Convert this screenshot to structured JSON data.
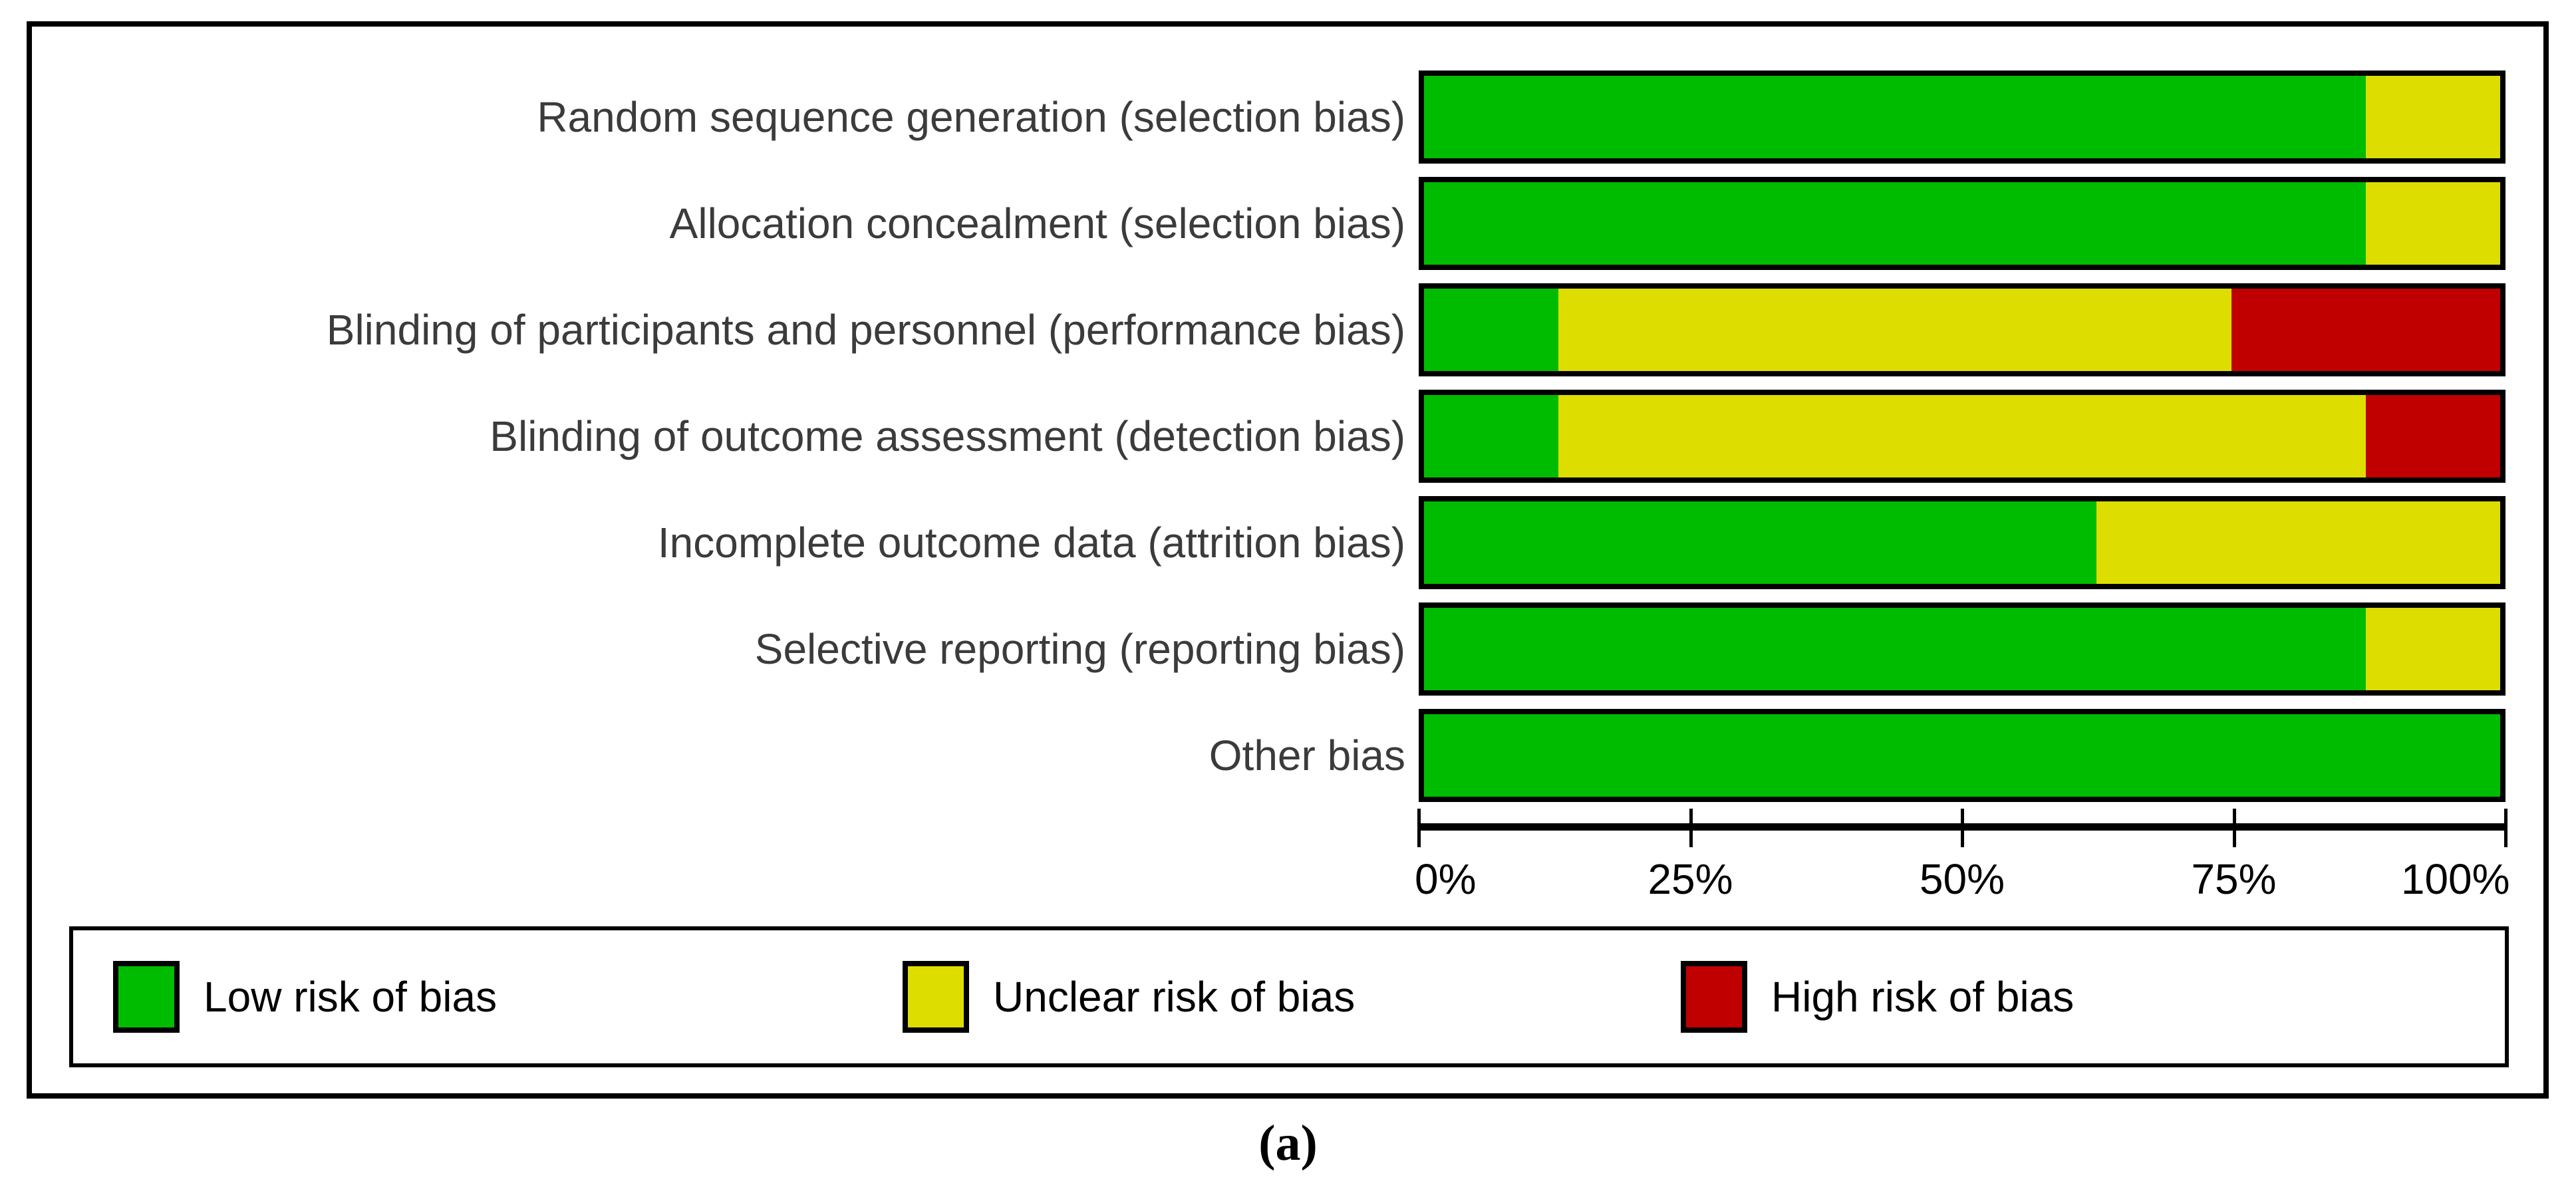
{
  "figure": {
    "caption": "(a)"
  },
  "colors": {
    "low_risk": "#00bc00",
    "unclear_risk": "#dedd00",
    "high_risk": "#c00000",
    "label_text": "#3b3b3b",
    "border": "#000000"
  },
  "legend": {
    "items": [
      {
        "key": "low",
        "label": "Low risk of bias",
        "color": "#00bc00"
      },
      {
        "key": "unclear",
        "label": "Unclear risk of bias",
        "color": "#dedd00"
      },
      {
        "key": "high",
        "label": "High risk of bias",
        "color": "#c00000"
      }
    ]
  },
  "chart_data": {
    "type": "bar",
    "orientation": "horizontal",
    "stacked": true,
    "unit": "percent",
    "title": "",
    "xlabel": "",
    "ylabel": "",
    "xlim": [
      0,
      100
    ],
    "x_ticks": [
      "0%",
      "25%",
      "50%",
      "75%",
      "100%"
    ],
    "grid": false,
    "legend_position": "bottom",
    "categories": [
      "Random sequence generation (selection bias)",
      "Allocation concealment (selection bias)",
      "Blinding of participants and personnel (performance bias)",
      "Blinding of outcome assessment (detection bias)",
      "Incomplete outcome data (attrition bias)",
      "Selective reporting (reporting bias)",
      "Other bias"
    ],
    "series": [
      {
        "name": "Low risk of bias",
        "key": "low",
        "color": "#00bc00",
        "values": [
          87.5,
          87.5,
          12.5,
          12.5,
          62.5,
          87.5,
          100
        ]
      },
      {
        "name": "Unclear risk of bias",
        "key": "unclear",
        "color": "#dedd00",
        "values": [
          12.5,
          12.5,
          62.5,
          75,
          37.5,
          12.5,
          0
        ]
      },
      {
        "name": "High risk of bias",
        "key": "high",
        "color": "#c00000",
        "values": [
          0,
          0,
          25,
          12.5,
          0,
          0,
          0
        ]
      }
    ]
  }
}
